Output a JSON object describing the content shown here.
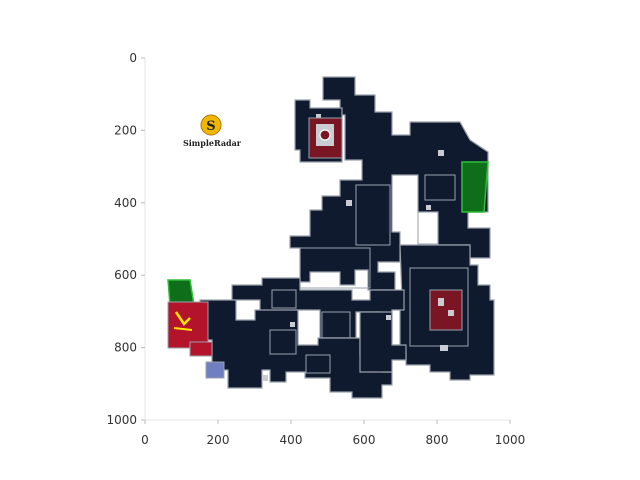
{
  "chart_data": {
    "type": "map",
    "xlim": [
      0,
      1000
    ],
    "ylim": [
      1000,
      0
    ],
    "xticks": [
      0,
      200,
      400,
      600,
      800,
      1000
    ],
    "yticks": [
      0,
      200,
      400,
      600,
      800,
      1000
    ],
    "grid": false
  },
  "logo": {
    "glyph": "S",
    "text": "SimpleRadar"
  },
  "colors": {
    "floor": "#0f1a2e",
    "outline": "#9aa1ad",
    "bombsite": "#7a1624",
    "spawn_ct": "#0f6e1a",
    "spawn_t": "#b3132b",
    "logo_gold": "#f2b705"
  }
}
